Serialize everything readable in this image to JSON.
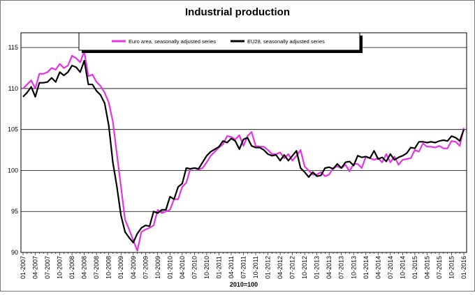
{
  "chart_data": {
    "type": "line",
    "title": "Industrial production",
    "xlabel": "2010=100",
    "categories": [
      "01-2007",
      null,
      null,
      "04-2007",
      null,
      null,
      "07-2007",
      null,
      null,
      "10-2007",
      null,
      null,
      "01-2008",
      null,
      null,
      "04-2008",
      null,
      null,
      "07-2008",
      null,
      null,
      "10-2008",
      null,
      null,
      "01-2009",
      null,
      null,
      "04-2009",
      null,
      null,
      "07-2009",
      null,
      null,
      "10-2009",
      null,
      null,
      "01-2010",
      null,
      null,
      "04-2010",
      null,
      null,
      "07-2010",
      null,
      null,
      "10-2010",
      null,
      null,
      "01-2011",
      null,
      null,
      "04-2011",
      null,
      null,
      "07-2011",
      null,
      null,
      "10-2011",
      null,
      null,
      "01-2012",
      null,
      null,
      "04-2012",
      null,
      null,
      "07-2012",
      null,
      null,
      "10-2012",
      null,
      null,
      "01-2013",
      null,
      null,
      "04-2013",
      null,
      null,
      "07-2013",
      null,
      null,
      "10-2013",
      null,
      null,
      "01-2014",
      null,
      null,
      "04-2014",
      null,
      null,
      "07-2014",
      null,
      null,
      "10-2014",
      null,
      null,
      "01-2015",
      null,
      null,
      "04-2015",
      null,
      null,
      "07-2015",
      null,
      null,
      "10-2015",
      null,
      null,
      "01-2016"
    ],
    "series": [
      {
        "name": "Euro area, seasonally adjusted series",
        "color": "#e633e6",
        "values": [
          110,
          110.5,
          111,
          110,
          111.8,
          111.8,
          112,
          112.5,
          112.3,
          113,
          112.5,
          112.8,
          114,
          113.7,
          113.2,
          114.5,
          111.5,
          111.7,
          110.8,
          110.3,
          109.5,
          108.3,
          106,
          102,
          98,
          94,
          92.8,
          91.5,
          90.2,
          92.5,
          92.8,
          93,
          93.3,
          95.2,
          94.8,
          95,
          95.2,
          96.5,
          96.5,
          98,
          98.5,
          100.2,
          100.3,
          100.1,
          100.3,
          101,
          101.8,
          102.3,
          102.8,
          103.2,
          104.2,
          104.1,
          103.8,
          104.3,
          103,
          104.2,
          104.7,
          103,
          102.9,
          102.9,
          102.5,
          102,
          102,
          102.2,
          101.5,
          102,
          101.2,
          101.8,
          102.5,
          100.5,
          100,
          99.5,
          99.5,
          99.8,
          99.3,
          99.5,
          100.3,
          100.5,
          100.3,
          100.7,
          99.9,
          100.8,
          100.8,
          100.3,
          101.7,
          101.5,
          101.3,
          101.5,
          101,
          102,
          101,
          101.7,
          100.7,
          101.3,
          101.4,
          101.5,
          102.5,
          102.3,
          103.3,
          102.9,
          102.9,
          102.8,
          103,
          102.7,
          102.7,
          103.6,
          103.5,
          103,
          105.2
        ]
      },
      {
        "name": "EU28, seasonally adjusted series",
        "color": "#000000",
        "values": [
          109,
          109.5,
          110.2,
          109,
          110.7,
          110.7,
          110.8,
          111.3,
          110.8,
          112,
          111.6,
          112,
          112.8,
          112.6,
          112,
          113.4,
          110.5,
          110.5,
          109.7,
          109.2,
          108.2,
          105.5,
          101,
          98,
          94.5,
          92.5,
          91.8,
          91.2,
          92.3,
          93,
          93.3,
          93.2,
          95,
          94.8,
          95.2,
          95.2,
          96.8,
          96.5,
          98,
          98.4,
          100.3,
          100.2,
          100.3,
          100.2,
          101,
          101.8,
          102.3,
          102.6,
          102.9,
          103.6,
          103.4,
          103.9,
          103.6,
          102.6,
          103.8,
          104,
          103,
          102.8,
          102.8,
          102.5,
          102,
          101.8,
          101.9,
          101.2,
          101.9,
          101.2,
          101.8,
          102.4,
          100.3,
          99.8,
          99.2,
          99.8,
          99.3,
          99.4,
          100.3,
          100.4,
          100.2,
          100.8,
          100.3,
          101,
          101.1,
          100.6,
          101.8,
          101.6,
          101.7,
          101.5,
          102.4,
          101.4,
          101.6,
          101.1,
          102,
          101.3,
          101.6,
          101.8,
          102.1,
          102.8,
          102.7,
          103.5,
          103.5,
          103.4,
          103.5,
          103.4,
          103.6,
          103.7,
          103.6,
          104.2,
          104,
          103.6,
          105
        ]
      }
    ],
    "ylim": [
      90,
      116.8
    ],
    "yticks": [
      90,
      95,
      100,
      105,
      110,
      115
    ],
    "grid": true
  }
}
